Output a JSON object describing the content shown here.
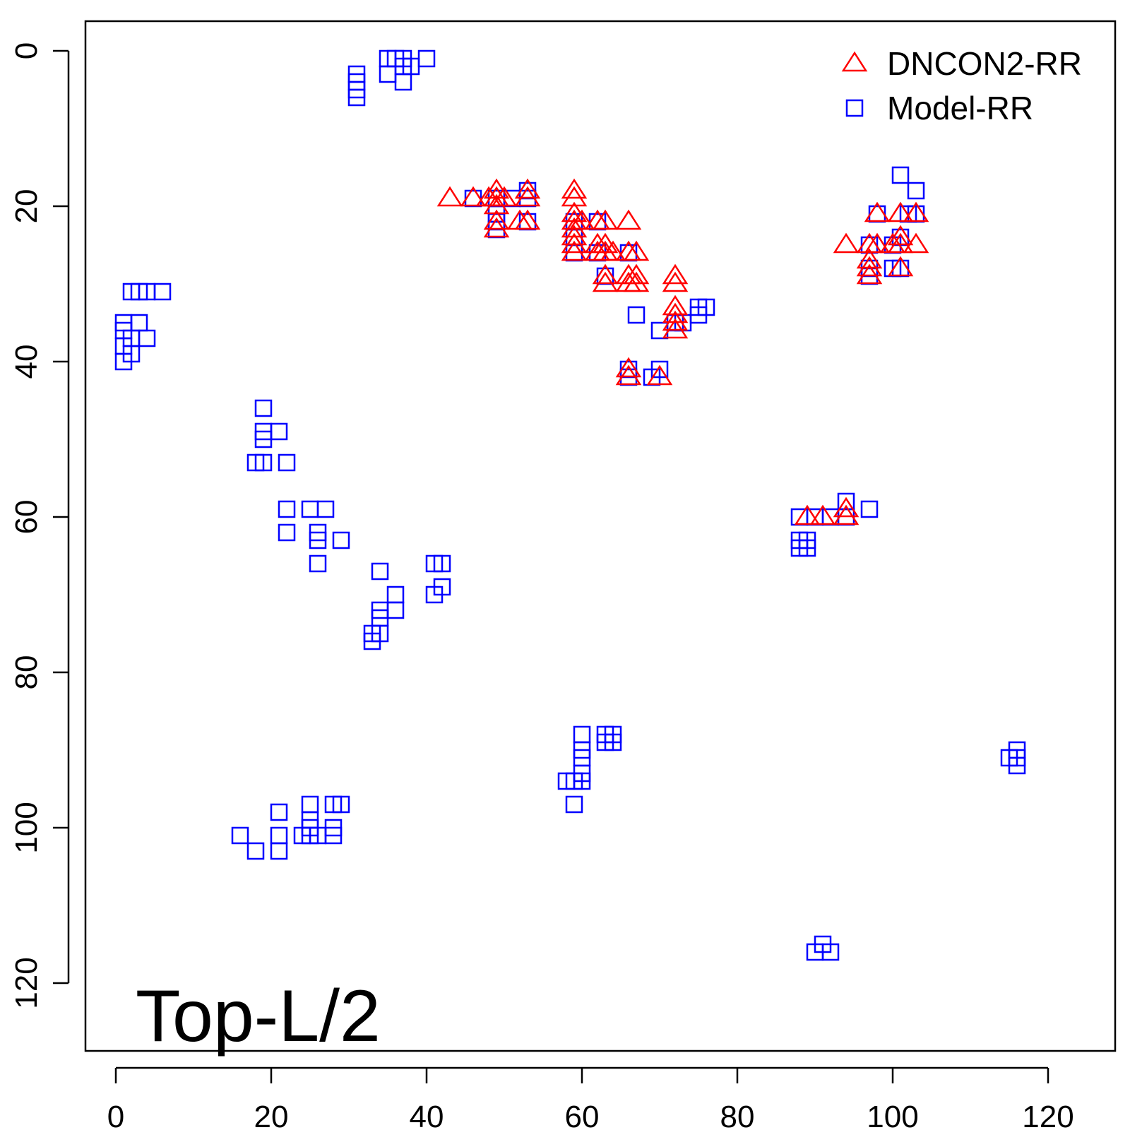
{
  "chart_data": {
    "type": "scatter",
    "title": "",
    "xlabel": "",
    "ylabel": "",
    "xlim": [
      -4,
      129
    ],
    "ylim": [
      129,
      -4
    ],
    "y_reversed": true,
    "grid": false,
    "x_ticks": [
      0,
      20,
      40,
      60,
      80,
      100,
      120
    ],
    "y_ticks": [
      0,
      20,
      40,
      60,
      80,
      100,
      120
    ],
    "x_tick_labels": [
      "0",
      "20",
      "40",
      "60",
      "80",
      "100",
      "120"
    ],
    "y_tick_labels": [
      "0",
      "20",
      "40",
      "60",
      "80",
      "100",
      "120"
    ],
    "annotation": "Top-L/2",
    "legend_position": "top-right",
    "series": [
      {
        "name": "DNCON2-RR",
        "marker": "triangle",
        "color": "#ff0000",
        "points": [
          [
            43,
            19
          ],
          [
            46,
            19
          ],
          [
            48,
            19
          ],
          [
            49,
            18
          ],
          [
            49,
            19
          ],
          [
            49,
            20
          ],
          [
            49,
            22
          ],
          [
            49,
            23
          ],
          [
            50,
            19
          ],
          [
            52,
            22
          ],
          [
            53,
            18
          ],
          [
            53,
            19
          ],
          [
            53,
            22
          ],
          [
            59,
            18
          ],
          [
            59,
            19
          ],
          [
            59,
            21
          ],
          [
            59,
            22
          ],
          [
            59,
            23
          ],
          [
            59,
            24
          ],
          [
            59,
            25
          ],
          [
            59,
            26
          ],
          [
            60,
            22
          ],
          [
            62,
            22
          ],
          [
            62,
            25
          ],
          [
            62,
            26
          ],
          [
            63,
            22
          ],
          [
            63,
            25
          ],
          [
            63,
            26
          ],
          [
            63,
            29
          ],
          [
            63,
            30
          ],
          [
            64,
            26
          ],
          [
            66,
            22
          ],
          [
            66,
            26
          ],
          [
            66,
            29
          ],
          [
            66,
            30
          ],
          [
            67,
            26
          ],
          [
            67,
            29
          ],
          [
            67,
            30
          ],
          [
            72,
            29
          ],
          [
            72,
            30
          ],
          [
            72,
            33
          ],
          [
            72,
            34
          ],
          [
            72,
            35
          ],
          [
            72,
            36
          ],
          [
            66,
            41
          ],
          [
            66,
            42
          ],
          [
            70,
            42
          ],
          [
            94,
            25
          ],
          [
            97,
            25
          ],
          [
            97,
            27
          ],
          [
            97,
            28
          ],
          [
            97,
            29
          ],
          [
            98,
            21
          ],
          [
            98,
            25
          ],
          [
            100,
            25
          ],
          [
            101,
            21
          ],
          [
            101,
            24
          ],
          [
            101,
            25
          ],
          [
            101,
            28
          ],
          [
            103,
            21
          ],
          [
            103,
            25
          ],
          [
            89,
            60
          ],
          [
            91,
            60
          ],
          [
            94,
            59
          ],
          [
            94,
            60
          ]
        ]
      },
      {
        "name": "Model-RR",
        "marker": "square",
        "color": "#0000ff",
        "points": [
          [
            31,
            3
          ],
          [
            31,
            4
          ],
          [
            31,
            5
          ],
          [
            31,
            6
          ],
          [
            35,
            1
          ],
          [
            35,
            3
          ],
          [
            36,
            1
          ],
          [
            37,
            1
          ],
          [
            37,
            2
          ],
          [
            37,
            4
          ],
          [
            38,
            2
          ],
          [
            40,
            1
          ],
          [
            2,
            31
          ],
          [
            3,
            31
          ],
          [
            4,
            31
          ],
          [
            6,
            31
          ],
          [
            1,
            35
          ],
          [
            3,
            35
          ],
          [
            1,
            36
          ],
          [
            2,
            37
          ],
          [
            4,
            37
          ],
          [
            1,
            38
          ],
          [
            2,
            39
          ],
          [
            1,
            40
          ],
          [
            19,
            46
          ],
          [
            19,
            49
          ],
          [
            19,
            50
          ],
          [
            21,
            49
          ],
          [
            18,
            53
          ],
          [
            19,
            53
          ],
          [
            22,
            53
          ],
          [
            22,
            59
          ],
          [
            25,
            59
          ],
          [
            27,
            59
          ],
          [
            22,
            62
          ],
          [
            26,
            62
          ],
          [
            26,
            63
          ],
          [
            29,
            63
          ],
          [
            26,
            66
          ],
          [
            34,
            67
          ],
          [
            36,
            70
          ],
          [
            34,
            72
          ],
          [
            36,
            72
          ],
          [
            34,
            73
          ],
          [
            33,
            75
          ],
          [
            34,
            75
          ],
          [
            33,
            76
          ],
          [
            41,
            66
          ],
          [
            42,
            66
          ],
          [
            42,
            69
          ],
          [
            41,
            70
          ],
          [
            46,
            19
          ],
          [
            49,
            19
          ],
          [
            49,
            21
          ],
          [
            49,
            22
          ],
          [
            49,
            23
          ],
          [
            51,
            19
          ],
          [
            53,
            18
          ],
          [
            53,
            19
          ],
          [
            53,
            22
          ],
          [
            59,
            22
          ],
          [
            59,
            24
          ],
          [
            59,
            26
          ],
          [
            62,
            22
          ],
          [
            62,
            26
          ],
          [
            63,
            29
          ],
          [
            66,
            26
          ],
          [
            67,
            34
          ],
          [
            66,
            41
          ],
          [
            66,
            42
          ],
          [
            70,
            36
          ],
          [
            70,
            41
          ],
          [
            69,
            42
          ],
          [
            72,
            35
          ],
          [
            73,
            35
          ],
          [
            75,
            33
          ],
          [
            75,
            34
          ],
          [
            76,
            33
          ],
          [
            101,
            16
          ],
          [
            103,
            18
          ],
          [
            98,
            21
          ],
          [
            102,
            21
          ],
          [
            103,
            21
          ],
          [
            97,
            25
          ],
          [
            97,
            28
          ],
          [
            97,
            29
          ],
          [
            100,
            25
          ],
          [
            101,
            24
          ],
          [
            100,
            28
          ],
          [
            101,
            28
          ],
          [
            88,
            60
          ],
          [
            90,
            60
          ],
          [
            92,
            60
          ],
          [
            94,
            58
          ],
          [
            94,
            60
          ],
          [
            97,
            59
          ],
          [
            88,
            63
          ],
          [
            89,
            63
          ],
          [
            88,
            64
          ],
          [
            89,
            64
          ],
          [
            16,
            101
          ],
          [
            18,
            103
          ],
          [
            21,
            98
          ],
          [
            21,
            101
          ],
          [
            21,
            103
          ],
          [
            24,
            101
          ],
          [
            25,
            97
          ],
          [
            25,
            99
          ],
          [
            25,
            100
          ],
          [
            25,
            101
          ],
          [
            26,
            101
          ],
          [
            28,
            97
          ],
          [
            29,
            97
          ],
          [
            28,
            100
          ],
          [
            28,
            101
          ],
          [
            58,
            94
          ],
          [
            59,
            94
          ],
          [
            59,
            97
          ],
          [
            60,
            88
          ],
          [
            60,
            90
          ],
          [
            60,
            91
          ],
          [
            60,
            93
          ],
          [
            60,
            94
          ],
          [
            63,
            88
          ],
          [
            64,
            88
          ],
          [
            63,
            89
          ],
          [
            64,
            89
          ],
          [
            115,
            91
          ],
          [
            116,
            90
          ],
          [
            116,
            91
          ],
          [
            116,
            92
          ],
          [
            90,
            116
          ],
          [
            91,
            115
          ],
          [
            92,
            116
          ]
        ]
      }
    ]
  }
}
